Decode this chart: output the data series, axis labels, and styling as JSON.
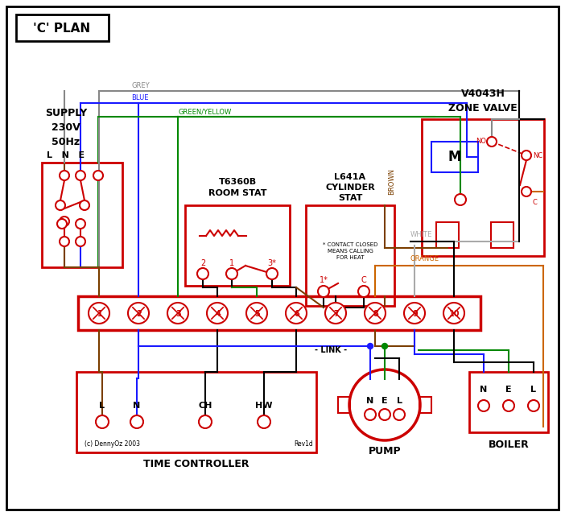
{
  "title": "'C' PLAN",
  "bg_color": "#ffffff",
  "red": "#cc0000",
  "blue": "#1a1aff",
  "green": "#008800",
  "brown": "#7b3f00",
  "grey": "#888888",
  "orange": "#cc6600",
  "black": "#000000",
  "white_wire": "#aaaaaa",
  "supply_text": "SUPPLY\n230V\n50Hz",
  "room_stat_title": "T6360B\nROOM STAT",
  "cyl_stat_title": "L641A\nCYLINDER\nSTAT",
  "zone_valve_title": "V4043H\nZONE VALVE",
  "time_ctrl_label": "TIME CONTROLLER",
  "pump_label": "PUMP",
  "boiler_label": "BOILER",
  "link_label": "LINK",
  "contact_note": "* CONTACT CLOSED\nMEANS CALLING\nFOR HEAT",
  "copyright": "(c) DennyOz 2003",
  "rev": "Rev1d"
}
